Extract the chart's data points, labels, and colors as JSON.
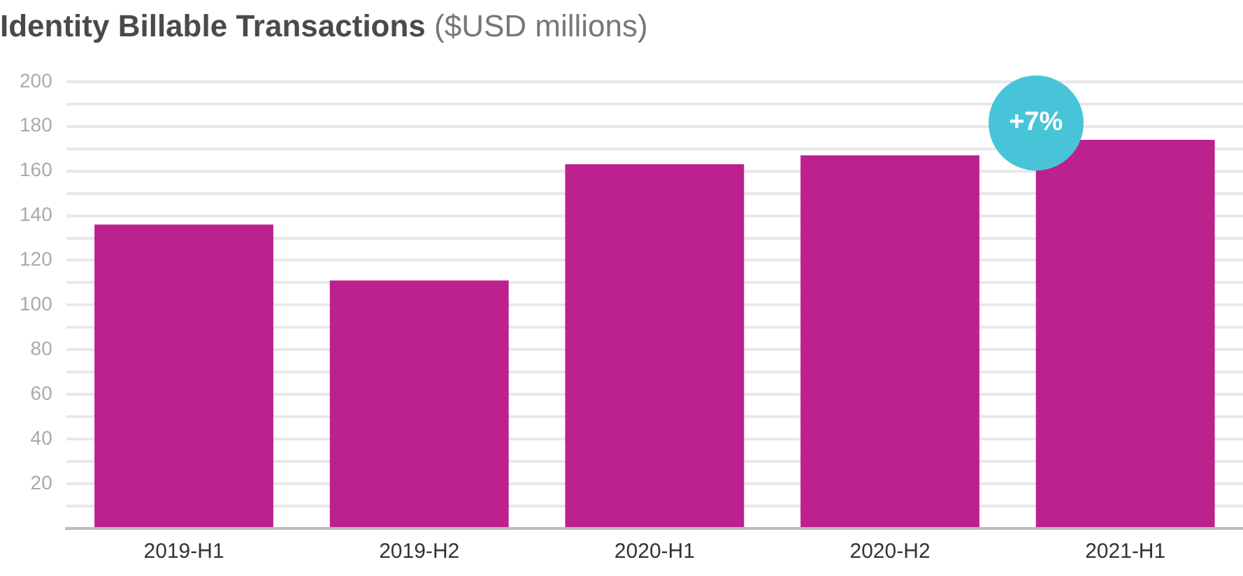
{
  "chart_data": {
    "type": "bar",
    "title": "Identity Billable Transactions",
    "subtitle": "($USD millions)",
    "categories": [
      "2019-H1",
      "2019-H2",
      "2020-H1",
      "2020-H2",
      "2021-H1"
    ],
    "values": [
      136,
      111,
      163,
      167,
      174
    ],
    "color": "#bc218e",
    "ylim": [
      0,
      200
    ],
    "yticks": [
      {
        "value": 0,
        "label": null
      },
      {
        "value": 10,
        "label": null
      },
      20,
      {
        "value": 30,
        "label": null
      },
      40,
      {
        "value": 50,
        "label": null
      },
      60,
      {
        "value": 70,
        "label": null
      },
      80,
      {
        "value": 90,
        "label": null
      },
      100,
      {
        "value": 110,
        "label": null
      },
      120,
      {
        "value": 130,
        "label": null
      },
      140,
      {
        "value": 150,
        "label": null
      },
      160,
      {
        "value": 170,
        "label": null
      },
      180,
      {
        "value": 190,
        "label": null
      },
      200
    ],
    "grid": "y",
    "annotations": [
      "+7%"
    ]
  }
}
